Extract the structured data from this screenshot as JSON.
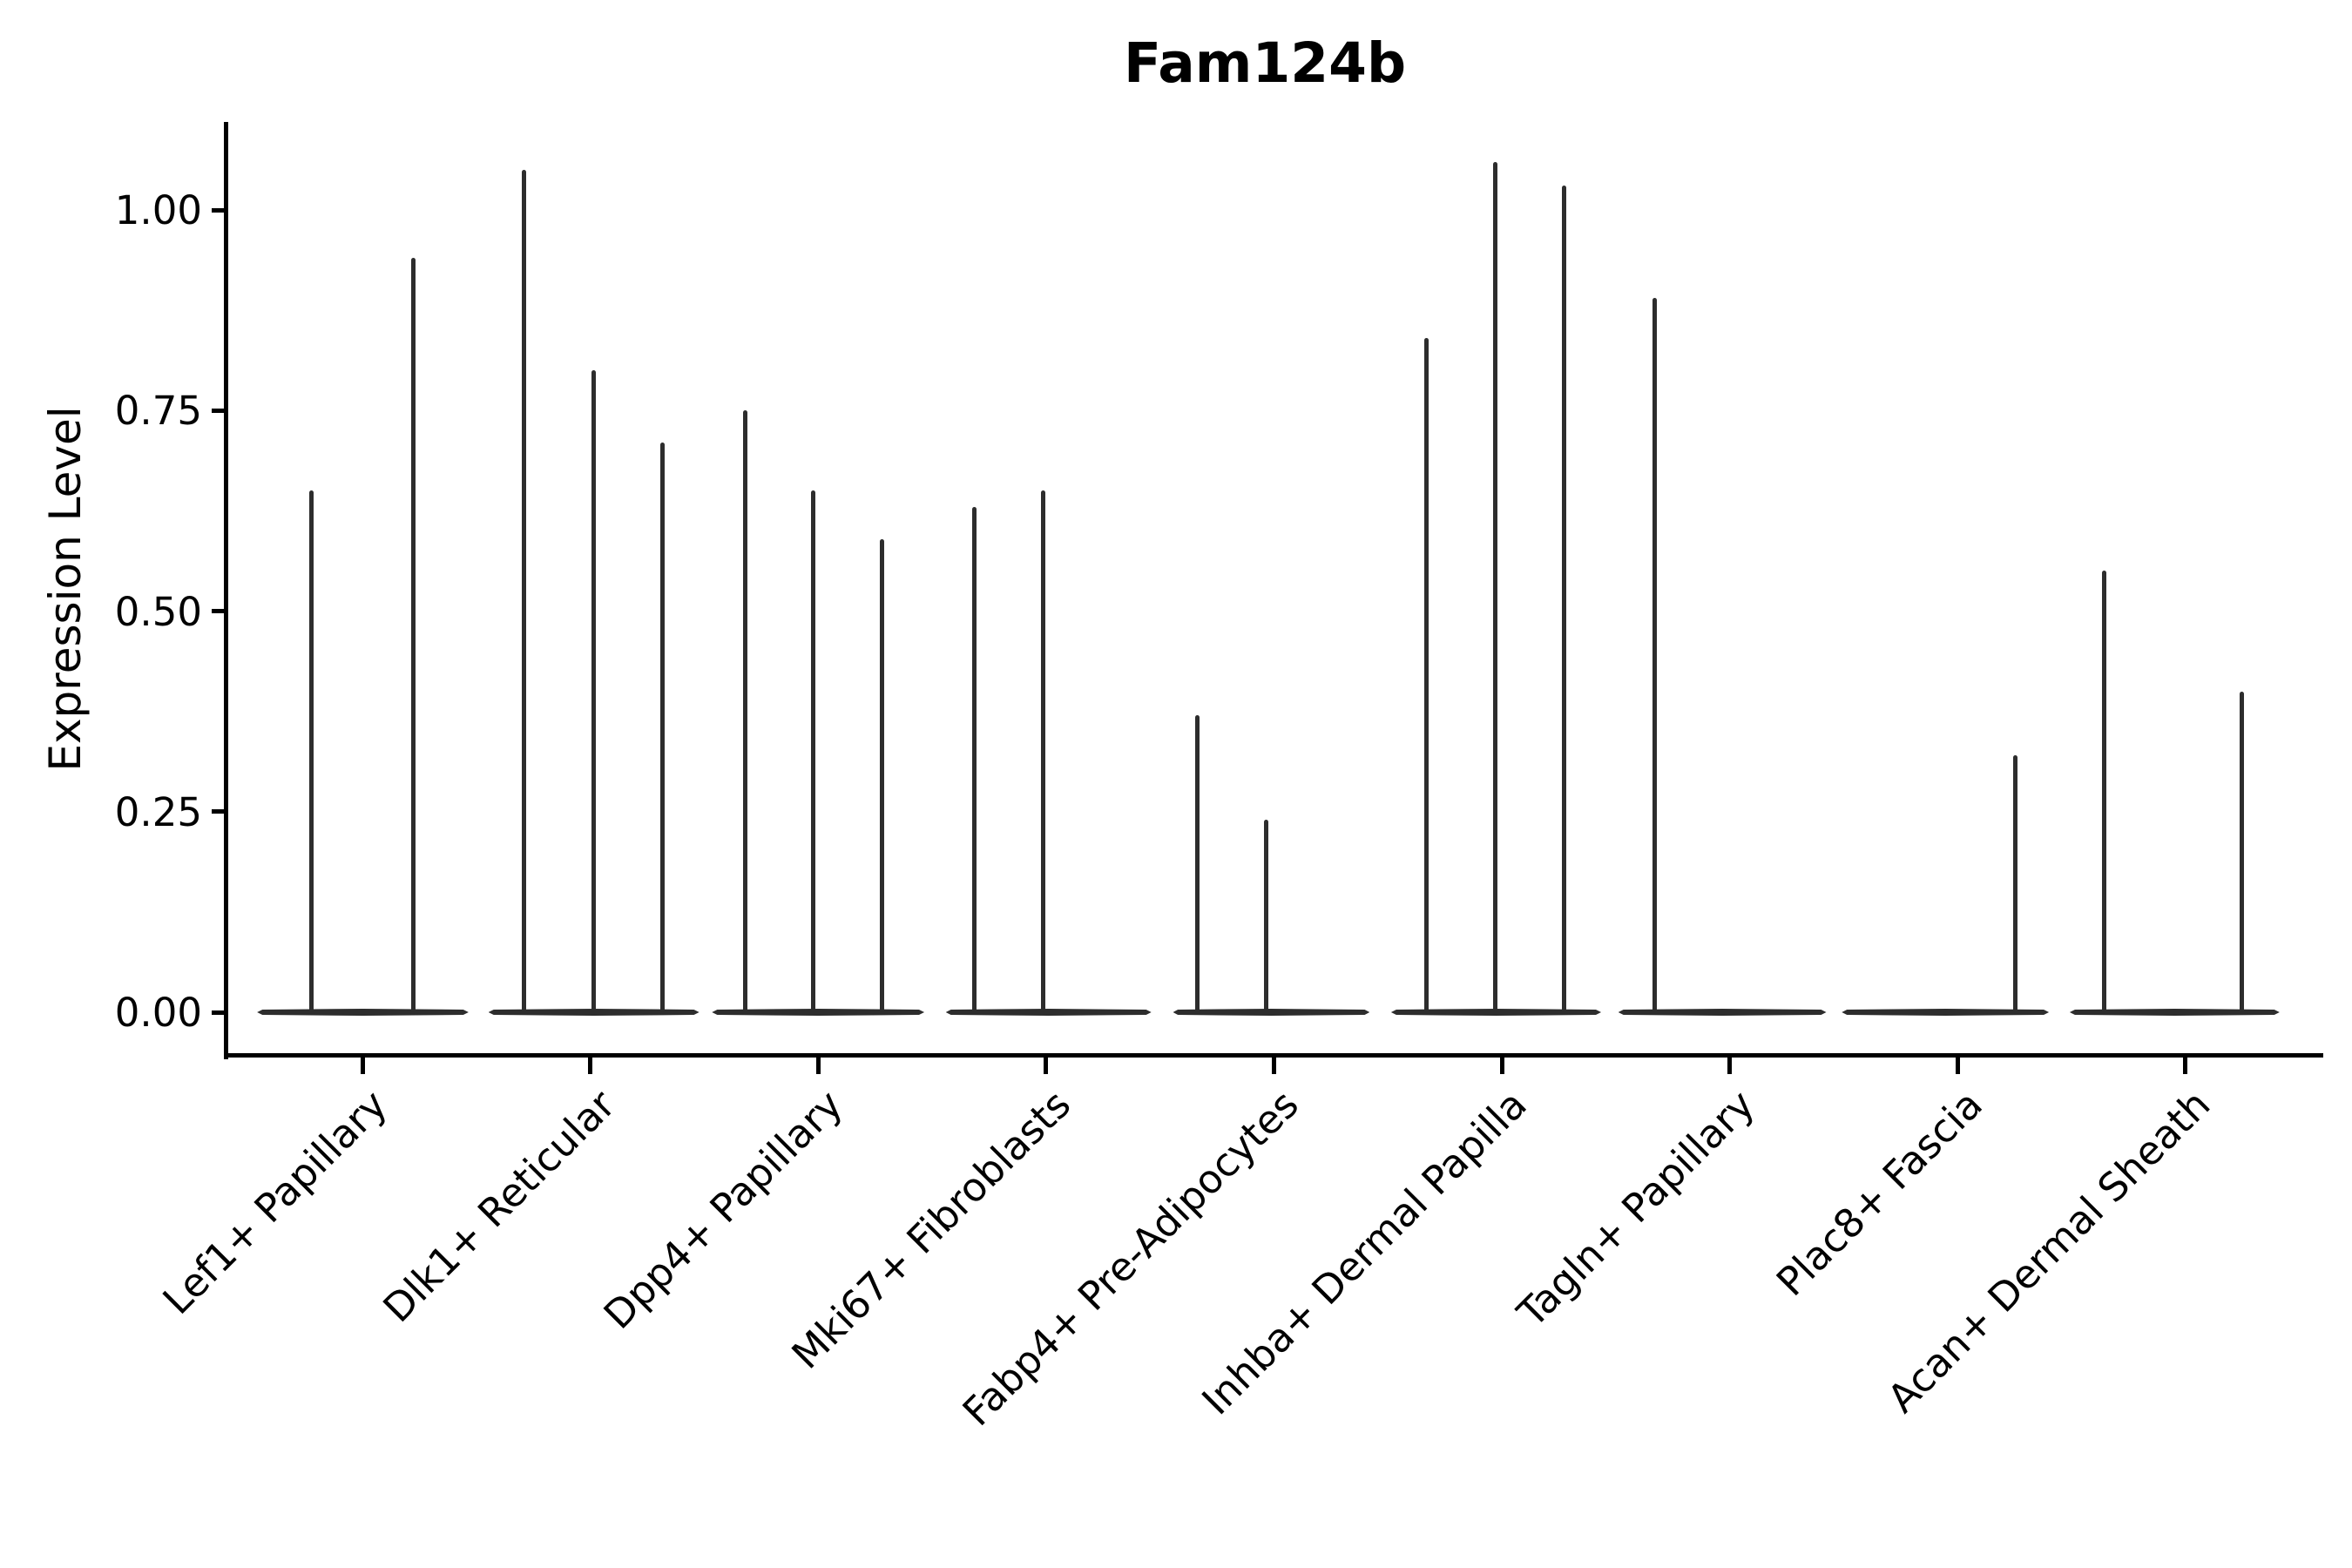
{
  "title": "Fam124b",
  "y_axis": {
    "label": "Expression Level",
    "ticks": [
      {
        "label": "1.00",
        "value": 1.0
      },
      {
        "label": "0.75",
        "value": 0.75
      },
      {
        "label": "0.50",
        "value": 0.5
      },
      {
        "label": "0.25",
        "value": 0.25
      },
      {
        "label": "0.00",
        "value": 0.0
      }
    ]
  },
  "colors": {
    "ink": "#000000",
    "violin": "#2d2d2d",
    "background": "#ffffff"
  },
  "chart_data": {
    "type": "violin",
    "title": "Fam124b",
    "xlabel": "",
    "ylabel": "Expression Level",
    "ylim": [
      -0.05,
      1.11
    ],
    "yticks": [
      0.0,
      0.25,
      0.5,
      0.75,
      1.0
    ],
    "grid": false,
    "legend": "none",
    "categories": [
      "Lef1+ Papillary",
      "Dlk1+ Reticular",
      "Dpp4+ Papillary",
      "Mki67+ Fibroblasts",
      "Fabp4+ Pre-Adipocytes",
      "Inhba+ Dermal Papilla",
      "Tagln+ Papillary",
      "Plac8+ Fascia",
      "Acan+ Dermal Sheath"
    ],
    "groups": [
      {
        "label": "Lef1+ Papillary",
        "base_extent": [
          -0.462,
          0.466
        ],
        "spikes": [
          {
            "offset": -0.222,
            "value": 0.65
          },
          {
            "offset": 0.225,
            "value": 0.94
          }
        ]
      },
      {
        "label": "Dlk1+ Reticular",
        "base_extent": [
          -0.447,
          0.478
        ],
        "spikes": [
          {
            "offset": -0.29,
            "value": 1.05
          },
          {
            "offset": 0.015,
            "value": 0.8
          },
          {
            "offset": 0.317,
            "value": 0.71
          }
        ]
      },
      {
        "label": "Dpp4+ Papillary",
        "base_extent": [
          -0.466,
          0.466
        ],
        "spikes": [
          {
            "offset": -0.321,
            "value": 0.75
          },
          {
            "offset": -0.023,
            "value": 0.65
          },
          {
            "offset": 0.279,
            "value": 0.59
          }
        ]
      },
      {
        "label": "Mki67+ Fibroblasts",
        "base_extent": [
          -0.44,
          0.462
        ],
        "spikes": [
          {
            "offset": -0.313,
            "value": 0.63
          },
          {
            "offset": -0.011,
            "value": 0.65
          }
        ]
      },
      {
        "label": "Fabp4+ Pre-Adipocytes",
        "base_extent": [
          -0.443,
          0.42
        ],
        "spikes": [
          {
            "offset": -0.336,
            "value": 0.37
          },
          {
            "offset": -0.034,
            "value": 0.24
          }
        ]
      },
      {
        "label": "Inhba+ Dermal Papilla",
        "base_extent": [
          -0.486,
          0.436
        ],
        "spikes": [
          {
            "offset": -0.329,
            "value": 0.84
          },
          {
            "offset": -0.027,
            "value": 1.06
          },
          {
            "offset": 0.275,
            "value": 1.03
          }
        ]
      },
      {
        "label": "Tagln+ Papillary",
        "base_extent": [
          -0.489,
          0.424
        ],
        "spikes": [
          {
            "offset": -0.329,
            "value": 0.89
          }
        ]
      },
      {
        "label": "Plac8+ Fascia",
        "base_extent": [
          -0.508,
          0.401
        ],
        "spikes": [
          {
            "offset": 0.252,
            "value": 0.32
          }
        ]
      },
      {
        "label": "Acan+ Dermal Sheath",
        "base_extent": [
          -0.508,
          0.413
        ],
        "spikes": [
          {
            "offset": -0.355,
            "value": 0.55
          },
          {
            "offset": 0.248,
            "value": 0.4
          }
        ]
      }
    ]
  }
}
